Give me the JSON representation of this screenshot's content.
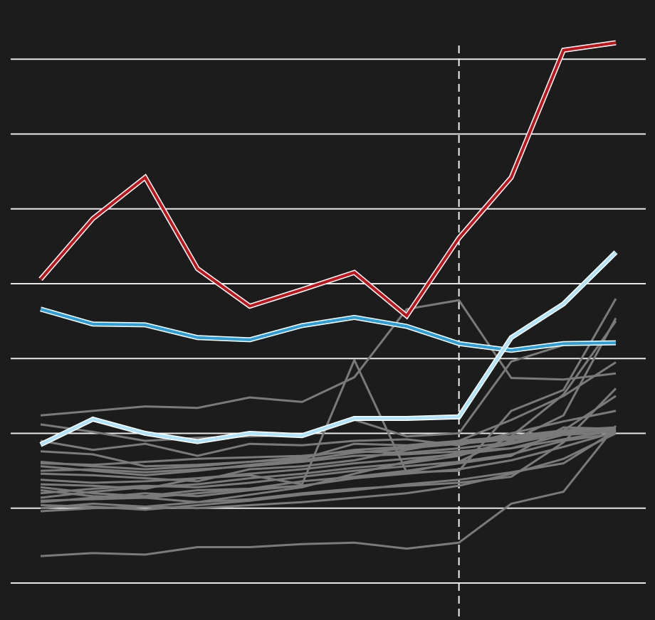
{
  "colors": {
    "background": "#1c1c1c",
    "grid": "#e6e6e6",
    "gray_series": "#7a7a7a",
    "red_series": "#c0141b",
    "blue_series": "#2a9fd8",
    "lightblue_series": "#aee4fb",
    "marker_line": "#f0f0f0"
  },
  "chart_data": {
    "type": "line",
    "title": "",
    "xlabel": "",
    "ylabel": "",
    "x": [
      1,
      2,
      3,
      4,
      5,
      6,
      7,
      8,
      9,
      10,
      11,
      12
    ],
    "xlim": [
      0.45,
      12
    ],
    "ylim": [
      -0.5,
      7.3
    ],
    "y_gridlines": [
      0,
      1,
      2,
      3,
      4,
      5,
      6,
      7
    ],
    "vertical_marker_x": 9.0,
    "grid": true,
    "series": [
      {
        "style": "red",
        "values": [
          4.06,
          4.87,
          5.42,
          4.2,
          3.7,
          3.92,
          4.15,
          3.57,
          4.61,
          5.42,
          7.12,
          7.22
        ]
      },
      {
        "style": "blue",
        "values": [
          3.66,
          3.46,
          3.45,
          3.28,
          3.25,
          3.44,
          3.55,
          3.43,
          3.2,
          3.11,
          3.2,
          3.21
        ]
      },
      {
        "style": "lightblue",
        "values": [
          1.85,
          2.19,
          2.0,
          1.89,
          2.0,
          1.97,
          2.2,
          2.2,
          2.22,
          3.28,
          3.73,
          4.42
        ]
      },
      {
        "style": "gray",
        "values": [
          2.24,
          2.3,
          2.36,
          2.34,
          2.48,
          2.42,
          2.75,
          3.66,
          3.78,
          2.74,
          2.72,
          2.8
        ]
      },
      {
        "style": "gray",
        "values": [
          1.32,
          1.3,
          1.26,
          1.4,
          1.44,
          1.32,
          2.98,
          1.48,
          1.5,
          2.3,
          2.58,
          3.8
        ]
      },
      {
        "style": "gray",
        "values": [
          0.36,
          0.4,
          0.38,
          0.48,
          0.48,
          0.52,
          0.54,
          0.46,
          0.54,
          1.06,
          1.22,
          2.1
        ]
      },
      {
        "style": "gray",
        "values": [
          2.12,
          2.02,
          1.9,
          1.94,
          1.96,
          1.98,
          2.18,
          1.96,
          2.0,
          2.96,
          3.18,
          3.2
        ]
      },
      {
        "style": "gray",
        "values": [
          1.28,
          1.2,
          1.16,
          1.24,
          1.26,
          1.3,
          1.4,
          1.48,
          1.62,
          1.96,
          2.52,
          3.5
        ]
      },
      {
        "style": "gray",
        "values": [
          1.6,
          1.58,
          1.62,
          1.66,
          1.68,
          1.7,
          1.76,
          1.74,
          1.8,
          1.88,
          2.04,
          2.5
        ]
      },
      {
        "style": "gray",
        "values": [
          1.1,
          1.12,
          1.14,
          1.08,
          1.12,
          1.2,
          1.26,
          1.3,
          1.34,
          1.42,
          1.88,
          2.6
        ]
      },
      {
        "style": "gray",
        "values": [
          1.9,
          1.78,
          1.86,
          1.7,
          1.86,
          1.84,
          1.9,
          1.92,
          1.84,
          2.0,
          2.16,
          2.3
        ]
      },
      {
        "style": "gray",
        "values": [
          1.46,
          1.44,
          1.4,
          1.36,
          1.52,
          1.56,
          1.64,
          1.78,
          1.9,
          2.18,
          2.5,
          2.95
        ]
      },
      {
        "style": "gray",
        "values": [
          1.0,
          1.06,
          1.02,
          1.08,
          1.18,
          1.28,
          1.46,
          1.62,
          1.74,
          1.86,
          2.0,
          2.08
        ]
      },
      {
        "style": "gray",
        "values": [
          1.76,
          1.72,
          1.56,
          1.58,
          1.62,
          1.66,
          1.86,
          1.84,
          1.9,
          1.96,
          2.04,
          2.08
        ]
      },
      {
        "style": "gray",
        "values": [
          1.14,
          1.22,
          1.28,
          1.32,
          1.4,
          1.46,
          1.54,
          1.6,
          1.7,
          1.9,
          2.24,
          3.54
        ]
      },
      {
        "style": "gray",
        "values": [
          1.24,
          1.16,
          1.14,
          1.2,
          1.26,
          1.36,
          1.42,
          1.5,
          1.6,
          1.7,
          2.08,
          2.06
        ]
      },
      {
        "style": "gray",
        "values": [
          1.5,
          1.52,
          1.48,
          1.52,
          1.56,
          1.62,
          1.7,
          1.72,
          1.76,
          1.8,
          1.92,
          2.04
        ]
      },
      {
        "style": "gray",
        "values": [
          1.04,
          1.02,
          0.98,
          1.04,
          1.1,
          1.18,
          1.24,
          1.32,
          1.38,
          1.48,
          1.6,
          2.04
        ]
      },
      {
        "style": "gray",
        "values": [
          0.96,
          1.0,
          1.02,
          1.0,
          1.04,
          1.08,
          1.14,
          1.2,
          1.3,
          1.46,
          1.66,
          2.0
        ]
      },
      {
        "style": "gray",
        "values": [
          1.38,
          1.34,
          1.36,
          1.4,
          1.46,
          1.52,
          1.6,
          1.66,
          1.72,
          1.8,
          1.98,
          2.02
        ]
      },
      {
        "style": "gray",
        "values": [
          1.2,
          1.26,
          1.3,
          1.28,
          1.34,
          1.42,
          1.5,
          1.56,
          1.62,
          1.72,
          1.9,
          2.0
        ]
      },
      {
        "style": "gray",
        "values": [
          1.56,
          1.5,
          1.44,
          1.5,
          1.58,
          1.64,
          1.74,
          1.8,
          1.86,
          1.92,
          2.0,
          2.06
        ]
      },
      {
        "style": "gray",
        "values": [
          1.08,
          1.14,
          1.2,
          1.16,
          1.24,
          1.3,
          1.4,
          1.46,
          1.52,
          1.64,
          1.82,
          2.02
        ]
      },
      {
        "style": "gray",
        "values": [
          1.62,
          1.56,
          1.52,
          1.56,
          1.62,
          1.68,
          1.78,
          1.82,
          1.88,
          1.94,
          2.02,
          2.04
        ]
      }
    ]
  }
}
